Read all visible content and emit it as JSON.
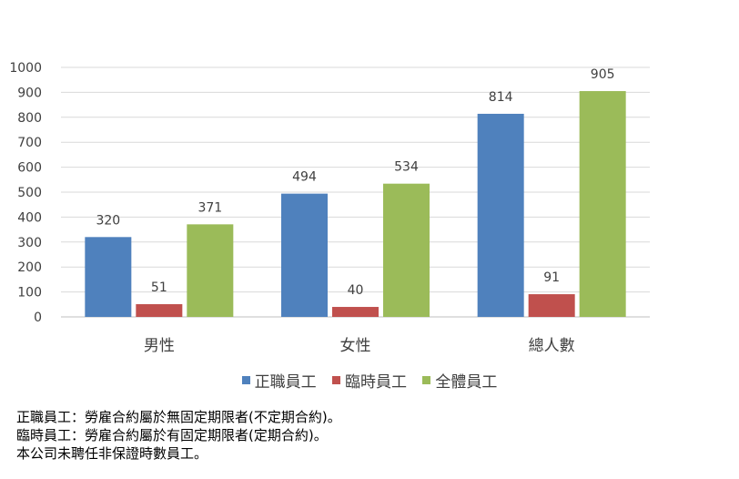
{
  "chart_data": {
    "type": "bar",
    "categories": [
      "男性",
      "女性",
      "總人數"
    ],
    "series": [
      {
        "name": "正職員工",
        "color": "#4f81bd",
        "values": [
          320,
          494,
          814
        ]
      },
      {
        "name": "臨時員工",
        "color": "#c0504d",
        "values": [
          51,
          40,
          91
        ]
      },
      {
        "name": "全體員工",
        "color": "#9bbb59",
        "values": [
          371,
          534,
          905
        ]
      }
    ],
    "ylim": [
      0,
      1000
    ],
    "yticks": [
      0,
      100,
      200,
      300,
      400,
      500,
      600,
      700,
      800,
      900,
      1000
    ],
    "grid": true,
    "legend_position": "bottom"
  },
  "notes": [
    "正職員工：勞雇合約屬於無固定期限者(不定期合約)。",
    "臨時員工：勞雇合約屬於有固定期限者(定期合約)。",
    "本公司未聘任非保證時數員工。"
  ]
}
